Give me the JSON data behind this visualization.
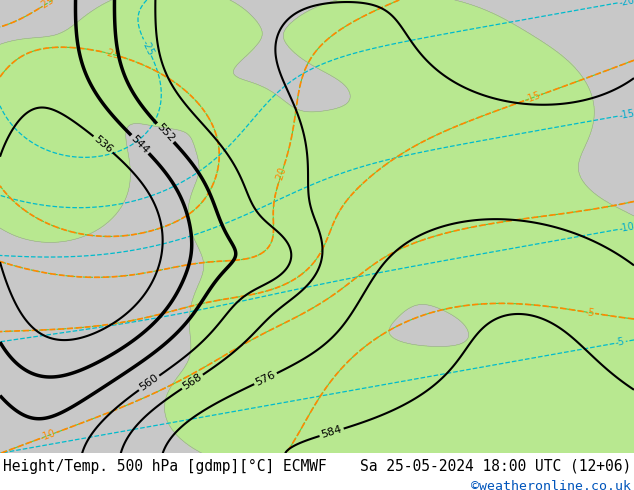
{
  "title_left": "Height/Temp. 500 hPa [gdmp][°C] ECMWF",
  "title_right": "Sa 25-05-2024 18:00 UTC (12+06)",
  "credit": "©weatheronline.co.uk",
  "bg_color": "#ffffff",
  "ocean_color": "#d8d8d8",
  "land_color_light": "#c8edb0",
  "land_color_mid": "#b0e090",
  "footer_fontsize": 10.5,
  "credit_fontsize": 9.5,
  "credit_color": "#0055bb",
  "footer_color": "#000000",
  "fig_width": 6.34,
  "fig_height": 4.9,
  "dpi": 100
}
